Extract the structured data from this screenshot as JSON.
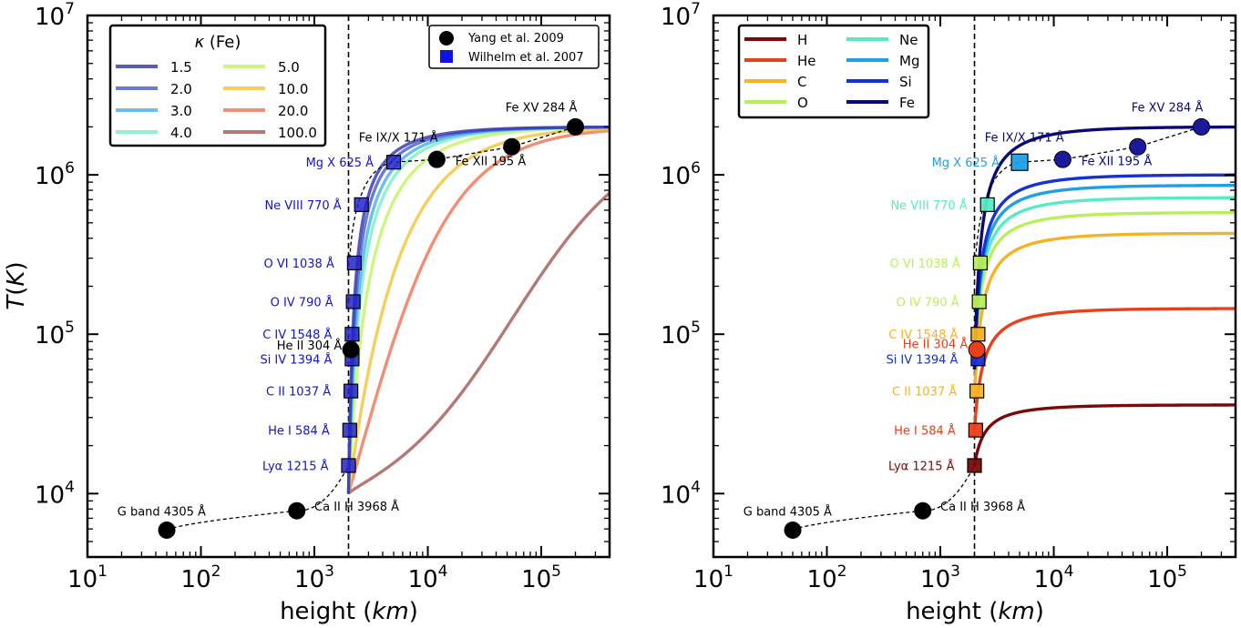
{
  "chart_data": [
    {
      "type": "line",
      "panel": "left",
      "xlabel": "height (km)",
      "xlabel_main": "height (",
      "xlabel_unit": "km",
      "xlabel_close": ")",
      "ylabel": "T(K)",
      "ylabel_T": "T",
      "ylabel_open": "(",
      "ylabel_K": "K",
      "ylabel_close": ")",
      "xscale": "log",
      "yscale": "log",
      "xlim": [
        10,
        400000
      ],
      "ylim": [
        4000,
        10000000
      ],
      "x_tick_base": "10",
      "x_ticks": [
        {
          "value": 10,
          "exp": "1"
        },
        {
          "value": 100,
          "exp": "2"
        },
        {
          "value": 1000,
          "exp": "3"
        },
        {
          "value": 10000,
          "exp": "4"
        },
        {
          "value": 100000,
          "exp": "5"
        }
      ],
      "y_ticks": [
        {
          "value": 10000,
          "exp": "4"
        },
        {
          "value": 100000,
          "exp": "5"
        },
        {
          "value": 1000000,
          "exp": "6"
        },
        {
          "value": 10000000,
          "exp": "7"
        }
      ],
      "vline_x": 2000,
      "legend_title": "κ (Fe)",
      "legend_title_kappa": "κ",
      "legend_title_rest": " (Fe)",
      "series": [
        {
          "name": "1.5",
          "color": "#3a3fb0",
          "shape": {
            "x0": 2000,
            "y0": 10000,
            "Tmax": 2000000,
            "scale": 230,
            "p": 1.0
          }
        },
        {
          "name": "2.0",
          "color": "#5161d6",
          "shape": {
            "x0": 2000,
            "y0": 10000,
            "Tmax": 2000000,
            "scale": 290,
            "p": 1.0
          }
        },
        {
          "name": "3.0",
          "color": "#4fb3ea",
          "shape": {
            "x0": 2000,
            "y0": 10000,
            "Tmax": 2000000,
            "scale": 380,
            "p": 1.0
          }
        },
        {
          "name": "4.0",
          "color": "#7ef0c6",
          "shape": {
            "x0": 2000,
            "y0": 10000,
            "Tmax": 2000000,
            "scale": 480,
            "p": 1.0
          }
        },
        {
          "name": "5.0",
          "color": "#c4f56a",
          "shape": {
            "x0": 2000,
            "y0": 10000,
            "Tmax": 2000000,
            "scale": 760,
            "p": 1.0
          }
        },
        {
          "name": "10.0",
          "color": "#f5c540",
          "shape": {
            "x0": 2000,
            "y0": 10000,
            "Tmax": 2000000,
            "scale": 2000,
            "p": 1.0
          }
        },
        {
          "name": "20.0",
          "color": "#f07a5a",
          "shape": {
            "x0": 2000,
            "y0": 10000,
            "Tmax": 2000000,
            "scale": 4200,
            "p": 1.0
          }
        },
        {
          "name": "100.0",
          "color": "#a8605c",
          "shape": {
            "x0": 2000,
            "y0": 10000,
            "Tmax": 2000000,
            "scale": 60000,
            "p": 0.8
          }
        }
      ],
      "markers_legend": [
        {
          "name": "Yang et al. 2009",
          "marker": "circle"
        },
        {
          "name": "Wilhelm et al. 2007",
          "marker": "square"
        }
      ],
      "observations_circle": [
        {
          "x": 50,
          "y": 5900,
          "label": "G band 4305 Å",
          "lx": 45,
          "ly": 7300,
          "anchor": "middle"
        },
        {
          "x": 700,
          "y": 7800,
          "label": "Ca II H 3968 Å",
          "lx": 1000,
          "ly": 7800,
          "anchor": "start"
        },
        {
          "x": 2100,
          "y": 80000,
          "label": "He II 304 Å",
          "lx": 1750,
          "ly": 80000,
          "anchor": "end"
        },
        {
          "x": 12000,
          "y": 1250000,
          "label": "Fe IX/X 171 Å",
          "lx": 5500,
          "ly": 1620000,
          "anchor": "middle"
        },
        {
          "x": 55000,
          "y": 1500000,
          "label": "Fe XII 195 Å",
          "lx": 17500,
          "ly": 1150000,
          "anchor": "start"
        },
        {
          "x": 200000,
          "y": 2000000,
          "label": "Fe XV 284 Å",
          "lx": 100000,
          "ly": 2500000,
          "anchor": "middle"
        }
      ],
      "observations_square": [
        {
          "x": 2000,
          "y": 15000,
          "label": "Lyα 1215 Å",
          "color": "#2323c8"
        },
        {
          "x": 2050,
          "y": 25000,
          "label": "He I 584 Å",
          "color": "#2323c8"
        },
        {
          "x": 2100,
          "y": 44000,
          "label": "C II 1037 Å",
          "color": "#2323c8"
        },
        {
          "x": 2150,
          "y": 70000,
          "label": "Si IV 1394 Å",
          "color": "#2323c8"
        },
        {
          "x": 2150,
          "y": 100000,
          "label": "C IV 1548 Å",
          "color": "#2323c8"
        },
        {
          "x": 2200,
          "y": 160000,
          "label": "O IV 790 Å",
          "color": "#2323c8"
        },
        {
          "x": 2250,
          "y": 280000,
          "label": "O VI 1038 Å",
          "color": "#2323c8"
        },
        {
          "x": 2600,
          "y": 650000,
          "label": "Ne VIII 770 Å",
          "color": "#2323c8"
        },
        {
          "x": 5000,
          "y": 1200000,
          "label": "Mg X 625 Å",
          "color": "#2323c8"
        }
      ],
      "label_color": "#1414c8",
      "label_color_black": "#000000"
    },
    {
      "type": "line",
      "panel": "right",
      "xlabel": "height (km)",
      "xlabel_main": "height (",
      "xlabel_unit": "km",
      "xlabel_close": ")",
      "xscale": "log",
      "yscale": "log",
      "xlim": [
        10,
        400000
      ],
      "ylim": [
        4000,
        10000000
      ],
      "x_tick_base": "10",
      "x_ticks": [
        {
          "value": 10,
          "exp": "1"
        },
        {
          "value": 100,
          "exp": "2"
        },
        {
          "value": 1000,
          "exp": "3"
        },
        {
          "value": 10000,
          "exp": "4"
        },
        {
          "value": 100000,
          "exp": "5"
        }
      ],
      "y_ticks": [
        {
          "value": 10000,
          "exp": "4"
        },
        {
          "value": 100000,
          "exp": "5"
        },
        {
          "value": 1000000,
          "exp": "6"
        },
        {
          "value": 10000000,
          "exp": "7"
        }
      ],
      "vline_x": 2000,
      "series": [
        {
          "name": "H",
          "color": "#7a0a0a",
          "shape": {
            "x0": 2000,
            "y0": 15000,
            "Tmax": 36000,
            "scale": 400,
            "p": 1.0
          }
        },
        {
          "name": "He",
          "color": "#e8401a",
          "shape": {
            "x0": 2000,
            "y0": 25000,
            "Tmax": 145000,
            "scale": 330,
            "p": 1.0
          }
        },
        {
          "name": "C",
          "color": "#f5b324",
          "shape": {
            "x0": 2000,
            "y0": 40000,
            "Tmax": 430000,
            "scale": 300,
            "p": 1.0
          }
        },
        {
          "name": "O",
          "color": "#b9f05a",
          "shape": {
            "x0": 2000,
            "y0": 60000,
            "Tmax": 580000,
            "scale": 290,
            "p": 1.0
          }
        },
        {
          "name": "Ne",
          "color": "#55ecc4",
          "shape": {
            "x0": 2000,
            "y0": 60000,
            "Tmax": 720000,
            "scale": 280,
            "p": 1.0
          }
        },
        {
          "name": "Mg",
          "color": "#1ea0e6",
          "shape": {
            "x0": 2000,
            "y0": 60000,
            "Tmax": 860000,
            "scale": 270,
            "p": 1.0
          }
        },
        {
          "name": "Si",
          "color": "#1430d6",
          "shape": {
            "x0": 2000,
            "y0": 60000,
            "Tmax": 1000000,
            "scale": 260,
            "p": 1.0
          }
        },
        {
          "name": "Fe",
          "color": "#0a0a6e",
          "shape": {
            "x0": 2000,
            "y0": 60000,
            "Tmax": 2000000,
            "scale": 250,
            "p": 1.0
          }
        }
      ],
      "observations_circle": [
        {
          "x": 50,
          "y": 5900,
          "label": "G band 4305 Å",
          "lx": 45,
          "ly": 7300,
          "anchor": "middle",
          "color": "#000000",
          "fill": "#000000"
        },
        {
          "x": 700,
          "y": 7800,
          "label": "Ca II H 3968 Å",
          "lx": 1000,
          "ly": 7800,
          "anchor": "start",
          "color": "#000000",
          "fill": "#000000"
        },
        {
          "x": 2100,
          "y": 80000,
          "label": "He II 304 Å",
          "lx": 1750,
          "ly": 82000,
          "anchor": "end",
          "color": "#e8401a",
          "fill": "#e8401a"
        },
        {
          "x": 12000,
          "y": 1250000,
          "label": "Fe IX/X 171 Å",
          "lx": 5500,
          "ly": 1620000,
          "anchor": "middle",
          "color": "#0a0a6e",
          "fill": "#1a1a9a"
        },
        {
          "x": 55000,
          "y": 1500000,
          "label": "Fe XII 195 Å",
          "lx": 17500,
          "ly": 1150000,
          "anchor": "start",
          "color": "#0a0a6e",
          "fill": "#1a1a9a"
        },
        {
          "x": 200000,
          "y": 2000000,
          "label": "Fe XV 284 Å",
          "lx": 100000,
          "ly": 2500000,
          "anchor": "middle",
          "color": "#0a0a6e",
          "fill": "#1a1a9a"
        }
      ],
      "observations_square": [
        {
          "x": 2000,
          "y": 15000,
          "label": "Lyα 1215 Å",
          "color": "#7a0a0a"
        },
        {
          "x": 2050,
          "y": 25000,
          "label": "He I 584 Å",
          "color": "#e8401a"
        },
        {
          "x": 2100,
          "y": 44000,
          "label": "C II 1037 Å",
          "color": "#f5b324"
        },
        {
          "x": 2150,
          "y": 70000,
          "label": "Si IV 1394 Å",
          "color": "#1430d6"
        },
        {
          "x": 2150,
          "y": 100000,
          "label": "C IV 1548 Å",
          "color": "#f5b324"
        },
        {
          "x": 2200,
          "y": 160000,
          "label": "O IV 790 Å",
          "color": "#b9f05a"
        },
        {
          "x": 2250,
          "y": 280000,
          "label": "O VI 1038 Å",
          "color": "#b9f05a"
        },
        {
          "x": 2600,
          "y": 650000,
          "label": "Ne VIII 770 Å",
          "color": "#55ecc4"
        },
        {
          "x": 5000,
          "y": 1200000,
          "label": "Mg X 625 Å",
          "color": "#1ea0e6"
        }
      ]
    }
  ]
}
